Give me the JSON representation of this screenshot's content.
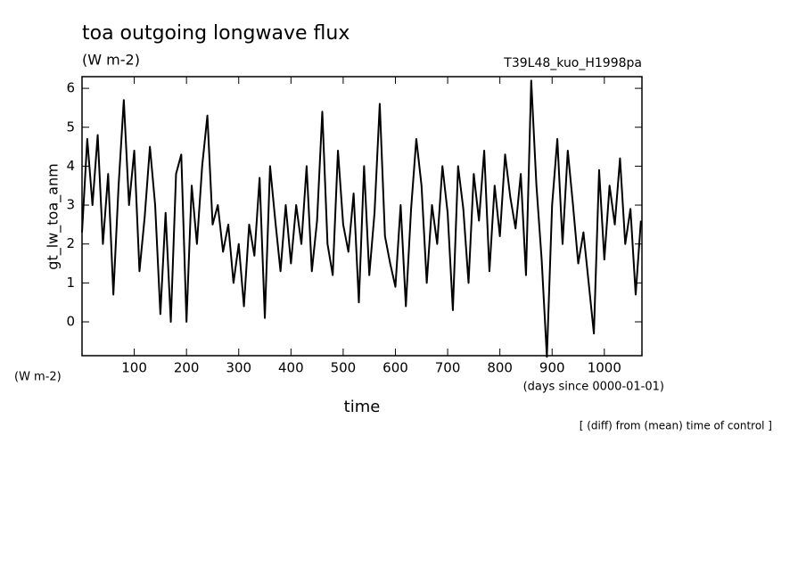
{
  "chart_data": {
    "type": "line",
    "title": "toa outgoing longwave flux",
    "subtitle": "(W m-2)",
    "run_label": "T39L48_kuo_H1998pa",
    "y_label": "gt_lw_toa_anm",
    "y_unit": "(W m-2)",
    "x_label": "time",
    "x_unit": "(days since 0000-01-01)",
    "annotation": "[ (diff) from (mean) time of control ]",
    "x": [
      0,
      10,
      20,
      30,
      40,
      50,
      60,
      70,
      80,
      90,
      100,
      110,
      120,
      130,
      140,
      150,
      160,
      170,
      180,
      190,
      200,
      210,
      220,
      230,
      240,
      250,
      260,
      270,
      280,
      290,
      300,
      310,
      320,
      330,
      340,
      350,
      360,
      370,
      380,
      390,
      400,
      410,
      420,
      430,
      440,
      450,
      460,
      470,
      480,
      490,
      500,
      510,
      520,
      530,
      540,
      550,
      560,
      570,
      580,
      590,
      600,
      610,
      620,
      630,
      640,
      650,
      660,
      670,
      680,
      690,
      700,
      710,
      720,
      730,
      740,
      750,
      760,
      770,
      780,
      790,
      800,
      810,
      820,
      830,
      840,
      850,
      860,
      870,
      880,
      890,
      900,
      910,
      920,
      930,
      940,
      950,
      960,
      970,
      980,
      990,
      1000,
      1010,
      1020,
      1030,
      1040,
      1050,
      1060,
      1070
    ],
    "series": [
      {
        "color": "#000000",
        "values": [
          2.3,
          4.7,
          3.0,
          4.8,
          2.0,
          3.8,
          0.7,
          3.5,
          5.7,
          3.0,
          4.4,
          1.3,
          2.7,
          4.5,
          3.0,
          0.2,
          2.8,
          0.0,
          3.8,
          4.3,
          0.0,
          3.5,
          2.0,
          4.0,
          5.3,
          2.5,
          3.0,
          1.8,
          2.5,
          1.0,
          2.0,
          0.4,
          2.5,
          1.7,
          3.7,
          0.1,
          4.0,
          2.6,
          1.3,
          3.0,
          1.5,
          3.0,
          2.0,
          4.0,
          1.3,
          2.6,
          5.4,
          2.0,
          1.2,
          4.4,
          2.5,
          1.8,
          3.3,
          0.5,
          4.0,
          1.2,
          2.8,
          5.6,
          2.2,
          1.5,
          0.9,
          3.0,
          0.4,
          2.9,
          4.7,
          3.5,
          1.0,
          3.0,
          2.0,
          4.0,
          2.8,
          0.3,
          4.0,
          2.9,
          1.0,
          3.8,
          2.6,
          4.4,
          1.3,
          3.5,
          2.2,
          4.3,
          3.2,
          2.4,
          3.8,
          1.2,
          6.2,
          3.5,
          1.6,
          -0.9,
          3.0,
          4.7,
          2.0,
          4.4,
          3.0,
          1.5,
          2.3,
          1.0,
          -0.3,
          3.9,
          1.6,
          3.5,
          2.5,
          4.2,
          2.0,
          2.9,
          0.7,
          2.6
        ]
      }
    ],
    "xlim": [
      0,
      1072
    ],
    "ylim": [
      -0.87,
      6.3
    ],
    "xticks": [
      100,
      200,
      300,
      400,
      500,
      600,
      700,
      800,
      900,
      1000
    ],
    "yticks": [
      0,
      1,
      2,
      3,
      4,
      5,
      6
    ]
  }
}
